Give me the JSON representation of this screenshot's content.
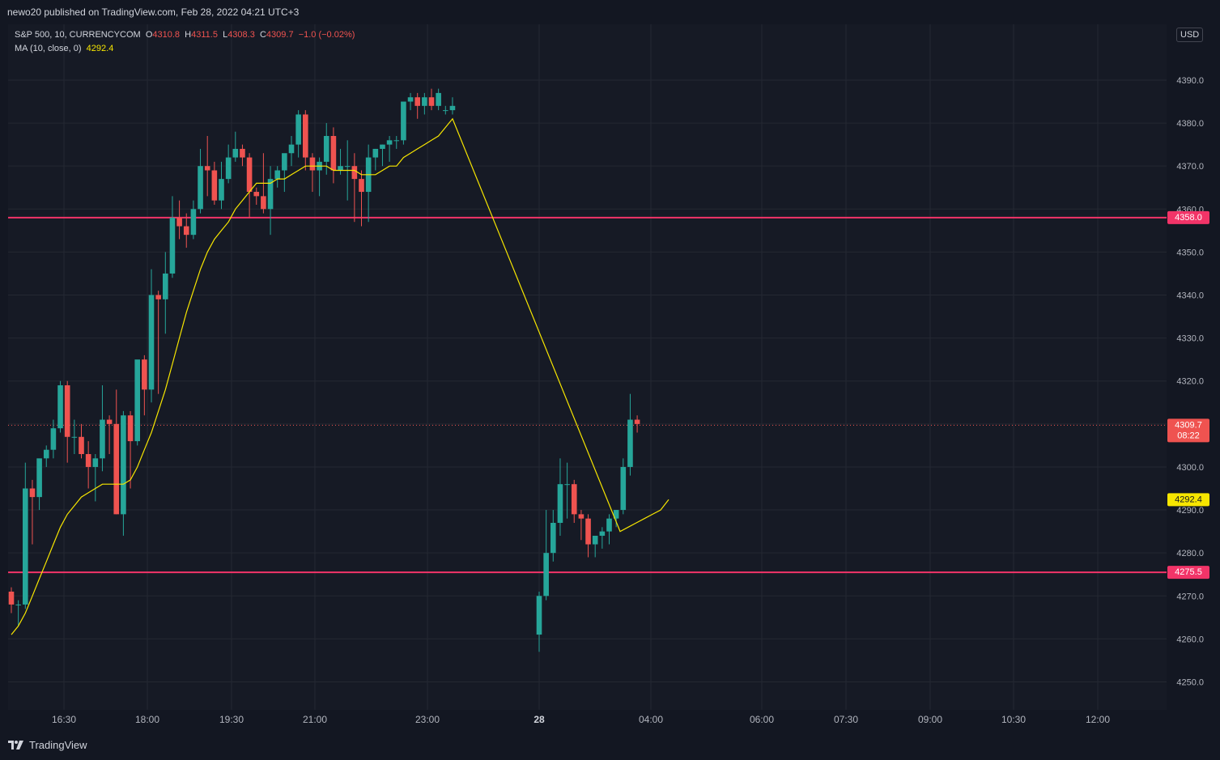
{
  "header": {
    "publisher_line": "newo20 published on TradingView.com, Feb 28, 2022 04:21 UTC+3"
  },
  "legend": {
    "symbol": "S&P 500, 10, CURRENCYCOM",
    "open_label": "O",
    "open": "4310.8",
    "high_label": "H",
    "high": "4311.5",
    "low_label": "L",
    "low": "4308.3",
    "close_label": "C",
    "close": "4309.7",
    "change": "−1.0 (−0.02%)",
    "ma_label": "MA (10, close, 0)",
    "ma_value": "4292.4"
  },
  "currency": "USD",
  "footer": {
    "brand": "TradingView"
  },
  "colors": {
    "background": "#161a25",
    "up": "#26a69a",
    "down": "#ef5350",
    "ma": "#f7e600",
    "level": "#f23468",
    "grid": "#242832",
    "axis_text": "#b2b5be"
  },
  "chart_data": {
    "type": "candlestick",
    "symbol": "S&P 500",
    "interval": "10",
    "ylim": [
      4245,
      4395
    ],
    "y_ticks": [
      4250,
      4260,
      4270,
      4280,
      4290,
      4300,
      4310,
      4320,
      4330,
      4340,
      4350,
      4360,
      4370,
      4380,
      4390
    ],
    "x_tick_labels": [
      "16:30",
      "18:00",
      "19:30",
      "21:00",
      "23:00",
      "28",
      "04:00",
      "06:00",
      "07:30",
      "09:00",
      "10:30",
      "12:00"
    ],
    "grid": true,
    "horizontal_levels": [
      {
        "value": 4358.0,
        "label": "4358.0"
      },
      {
        "value": 4275.5,
        "label": "4275.5"
      }
    ],
    "last_price": {
      "value": 4309.7,
      "label": "4309.7",
      "countdown": "08:22"
    },
    "ma_last": {
      "value": 4292.4,
      "label": "4292.4"
    },
    "session1_candles": [
      [
        4271,
        4272,
        4266,
        4268
      ],
      [
        4268,
        4269,
        4263,
        4268
      ],
      [
        4268,
        4301,
        4267,
        4295
      ],
      [
        4295,
        4297,
        4282,
        4293
      ],
      [
        4293,
        4301,
        4290,
        4302
      ],
      [
        4302,
        4305,
        4300,
        4304
      ],
      [
        4304,
        4311,
        4302,
        4309
      ],
      [
        4309,
        4320,
        4308,
        4319
      ],
      [
        4319,
        4320,
        4301,
        4307
      ],
      [
        4307,
        4311,
        4303,
        4307
      ],
      [
        4307,
        4310,
        4302,
        4303
      ],
      [
        4303,
        4306,
        4295,
        4300
      ],
      [
        4300,
        4303,
        4292,
        4302
      ],
      [
        4302,
        4319,
        4299,
        4311
      ],
      [
        4311,
        4312,
        4303,
        4310
      ],
      [
        4310,
        4318,
        4289,
        4289
      ],
      [
        4289,
        4313,
        4284,
        4312
      ],
      [
        4312,
        4313,
        4295,
        4306
      ],
      [
        4306,
        4320,
        4305,
        4325
      ],
      [
        4325,
        4326,
        4312,
        4318
      ],
      [
        4318,
        4346,
        4315,
        4340
      ],
      [
        4340,
        4341,
        4317,
        4339
      ],
      [
        4339,
        4350,
        4331,
        4345
      ],
      [
        4345,
        4363,
        4344,
        4358
      ],
      [
        4358,
        4362,
        4353,
        4356
      ],
      [
        4356,
        4359,
        4351,
        4354
      ],
      [
        4354,
        4362,
        4353,
        4360
      ],
      [
        4360,
        4374,
        4359,
        4370
      ],
      [
        4370,
        4377,
        4363,
        4369
      ],
      [
        4369,
        4371,
        4361,
        4362
      ],
      [
        4362,
        4371,
        4360,
        4367
      ],
      [
        4367,
        4375,
        4366,
        4372
      ],
      [
        4372,
        4378,
        4371,
        4374
      ],
      [
        4374,
        4375,
        4370,
        4372
      ],
      [
        4372,
        4373,
        4358,
        4364
      ],
      [
        4364,
        4365,
        4361,
        4363
      ],
      [
        4363,
        4373,
        4359,
        4360
      ],
      [
        4360,
        4370,
        4354,
        4367
      ],
      [
        4367,
        4370,
        4365,
        4369
      ],
      [
        4369,
        4372,
        4364,
        4373
      ],
      [
        4373,
        4377,
        4370,
        4375
      ],
      [
        4375,
        4383,
        4372,
        4382
      ],
      [
        4382,
        4383,
        4369,
        4372
      ],
      [
        4372,
        4373,
        4364,
        4369
      ],
      [
        4369,
        4372,
        4363,
        4371
      ],
      [
        4371,
        4380,
        4368,
        4377
      ],
      [
        4377,
        4379,
        4366,
        4369
      ],
      [
        4369,
        4374,
        4368,
        4370
      ],
      [
        4370,
        4376,
        4362,
        4370
      ],
      [
        4370,
        4373,
        4357,
        4367
      ],
      [
        4367,
        4369,
        4356,
        4364
      ],
      [
        4364,
        4375,
        4357,
        4372
      ],
      [
        4372,
        4374,
        4369,
        4374
      ],
      [
        4374,
        4375,
        4370,
        4375
      ],
      [
        4375,
        4377,
        4371,
        4376
      ],
      [
        4376,
        4377,
        4374,
        4376
      ],
      [
        4376,
        4384,
        4375,
        4385
      ],
      [
        4385,
        4387,
        4383,
        4386
      ],
      [
        4386,
        4387,
        4381,
        4384
      ],
      [
        4384,
        4387,
        4382,
        4386
      ],
      [
        4386,
        4388,
        4383,
        4384
      ],
      [
        4384,
        4388,
        4383,
        4387
      ],
      [
        4383,
        4384,
        4382,
        4383
      ],
      [
        4383,
        4386,
        4382,
        4384
      ]
    ],
    "session2_candles": [
      [
        4261,
        4271,
        4257,
        4270
      ],
      [
        4270,
        4290,
        4269,
        4280
      ],
      [
        4280,
        4290,
        4278,
        4287
      ],
      [
        4287,
        4302,
        4284,
        4296
      ],
      [
        4296,
        4301,
        4288,
        4296
      ],
      [
        4296,
        4297,
        4287,
        4289
      ],
      [
        4289,
        4290,
        4283,
        4288
      ],
      [
        4288,
        4289,
        4279,
        4282
      ],
      [
        4282,
        4283,
        4279,
        4284
      ],
      [
        4284,
        4286,
        4281,
        4285
      ],
      [
        4285,
        4289,
        4282,
        4288
      ],
      [
        4288,
        4290,
        4286,
        4290
      ],
      [
        4290,
        4302,
        4289,
        4300
      ],
      [
        4300,
        4317,
        4298,
        4311
      ],
      [
        4311,
        4312,
        4308,
        4310
      ]
    ],
    "ma_session1": [
      4261,
      4263,
      4266,
      4270,
      4274,
      4278,
      4282,
      4286,
      4289,
      4291,
      4293,
      4294,
      4295,
      4296,
      4296,
      4296,
      4296,
      4297,
      4300,
      4304,
      4308,
      4313,
      4318,
      4324,
      4330,
      4336,
      4341,
      4346,
      4350,
      4353,
      4355,
      4357,
      4360,
      4362,
      4364,
      4366,
      4366,
      4366,
      4367,
      4367,
      4368,
      4369,
      4370,
      4370,
      4370,
      4370,
      4369,
      4369,
      4369,
      4369,
      4368,
      4368,
      4368,
      4369,
      4370,
      4370,
      4372,
      4373,
      4374,
      4375,
      4376,
      4377,
      4379,
      4381
    ],
    "ma_session2": [
      4285,
      4286,
      4287,
      4288,
      4289,
      4290,
      4292.4
    ]
  }
}
